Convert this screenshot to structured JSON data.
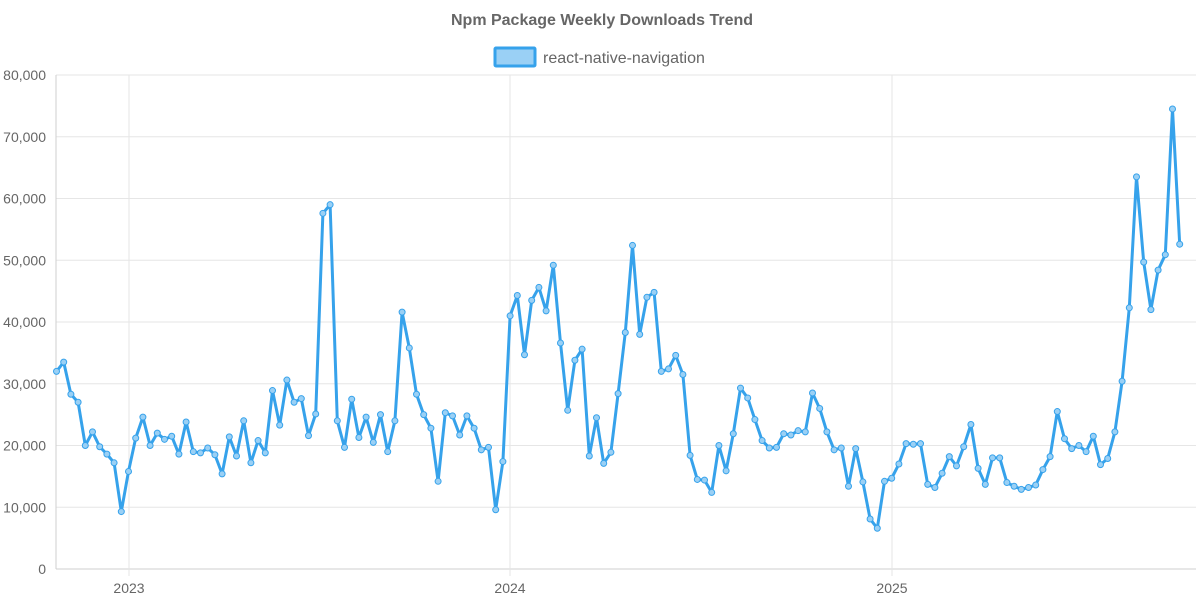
{
  "chart_data": {
    "type": "line",
    "title": "Npm Package Weekly Downloads Trend",
    "xlabel": "",
    "ylabel": "",
    "x_ticks": [
      "2023",
      "2024",
      "2025"
    ],
    "y_ticks": [
      "0",
      "10,000",
      "20,000",
      "30,000",
      "40,000",
      "50,000",
      "60,000",
      "70,000",
      "80,000"
    ],
    "ylim": [
      0,
      80000
    ],
    "grid": true,
    "legend_position": "top-center",
    "series": [
      {
        "name": "react-native-navigation",
        "color": "#36a2eb",
        "fill_color": "#9ad0f5",
        "values": [
          32000,
          33500,
          28300,
          27000,
          20000,
          22200,
          19800,
          18600,
          17200,
          9300,
          15800,
          21200,
          24600,
          20000,
          22000,
          21000,
          21500,
          18600,
          23800,
          19000,
          18800,
          19600,
          18500,
          15400,
          21400,
          18300,
          24000,
          17200,
          20800,
          18800,
          28900,
          23300,
          30600,
          27000,
          27600,
          21600,
          25100,
          57600,
          59000,
          24000,
          19700,
          27500,
          21300,
          24600,
          20500,
          25000,
          19000,
          24000,
          41600,
          35800,
          28300,
          25000,
          22800,
          14200,
          25300,
          24800,
          21700,
          24800,
          22800,
          19300,
          19700,
          9600,
          17400,
          41000,
          44300,
          34700,
          43500,
          45600,
          41800,
          49200,
          36600,
          25700,
          33800,
          35600,
          18300,
          24500,
          17100,
          18900,
          28400,
          38300,
          52400,
          38000,
          44000,
          44800,
          32000,
          32400,
          34600,
          31500,
          18400,
          14500,
          14400,
          12400,
          20000,
          15900,
          21900,
          29300,
          27700,
          24200,
          20800,
          19600,
          19700,
          21900,
          21700,
          22400,
          22200,
          28500,
          26000,
          22200,
          19300,
          19600,
          13400,
          19500,
          14100,
          8100,
          6600,
          14200,
          14700,
          17000,
          20300,
          20200,
          20300,
          13700,
          13200,
          15500,
          18200,
          16700,
          19800,
          23400,
          16300,
          13700,
          18000,
          18000,
          14000,
          13400,
          12900,
          13200,
          13600,
          16100,
          18200,
          25500,
          21100,
          19500,
          20000,
          19000,
          21500,
          16900,
          17900,
          22200,
          30400,
          42300,
          63500,
          49700,
          42000,
          48400,
          50900,
          74500,
          52600
        ]
      }
    ]
  }
}
